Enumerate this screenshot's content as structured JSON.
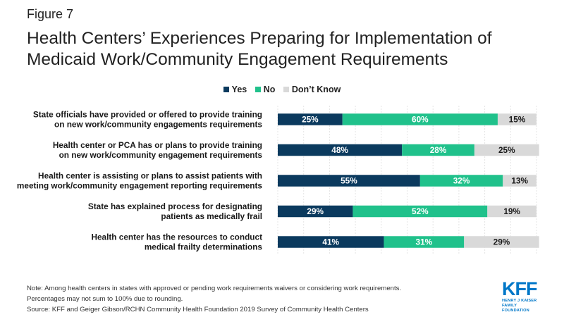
{
  "figure_label": "Figure 7",
  "title_line1": "Health Centers’ Experiences Preparing for Implementation of",
  "title_line2": "Medicaid Work/Community Engagement Requirements",
  "legend": [
    {
      "label": "Yes",
      "color": "#0b3a5e"
    },
    {
      "label": "No",
      "color": "#20c18b"
    },
    {
      "label": "Don’t Know",
      "color": "#d9d9d9"
    }
  ],
  "chart_data": {
    "type": "bar",
    "orientation": "horizontal",
    "stacked": true,
    "xlim": [
      0,
      100
    ],
    "legend_position": "top",
    "categories": [
      [
        "State officials have provided or offered to provide training",
        "on new work/community engagements requirements"
      ],
      [
        "Health center or PCA has or plans to provide training",
        "on new work/community engagement requirements"
      ],
      [
        "Health center is assisting or plans to assist patients with",
        "meeting  work/community engagement reporting requirements"
      ],
      [
        "State has explained process  for designating",
        "patients as medically frail"
      ],
      [
        "Health center has the resources to conduct",
        "medical frailty determinations"
      ]
    ],
    "series": [
      {
        "name": "Yes",
        "color": "#0b3a5e",
        "label_color": "#ffffff",
        "values": [
          25,
          48,
          55,
          29,
          41
        ]
      },
      {
        "name": "No",
        "color": "#20c18b",
        "label_color": "#ffffff",
        "values": [
          60,
          28,
          32,
          52,
          31
        ]
      },
      {
        "name": "Don’t Know",
        "color": "#d9d9d9",
        "label_color": "#1a1a1a",
        "values": [
          15,
          25,
          13,
          19,
          29
        ]
      }
    ]
  },
  "notes": [
    "Note: Among health centers in states with approved or pending work requirements waivers or considering work requirements.",
    "Percentages may not sum to 100% due to rounding.",
    "Source: KFF and Geiger Gibson/RCHN Community Health Foundation 2019 Survey of Community Health Centers"
  ],
  "logo": {
    "mark": "KFF",
    "line1": "HENRY J KAISER",
    "line2": "FAMILY FOUNDATION"
  }
}
